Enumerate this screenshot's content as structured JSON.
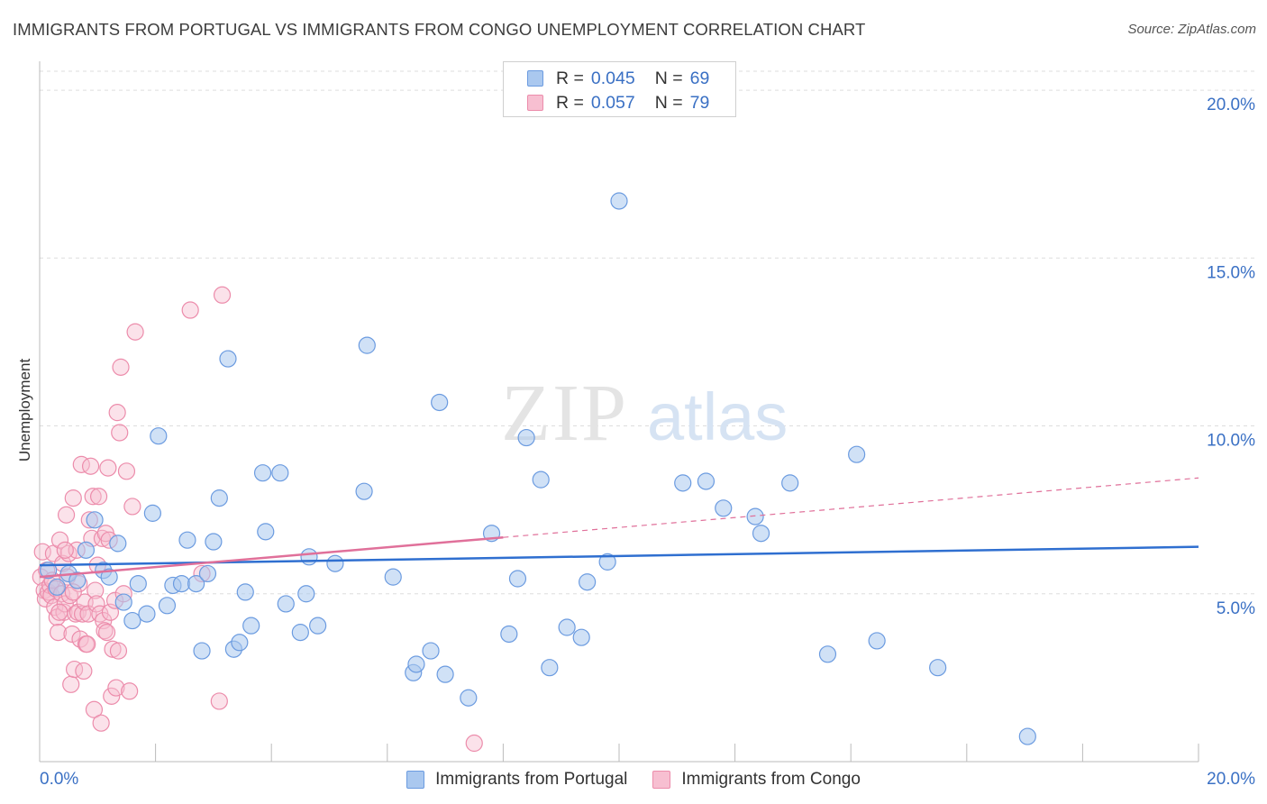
{
  "title": "IMMIGRANTS FROM PORTUGAL VS IMMIGRANTS FROM CONGO UNEMPLOYMENT CORRELATION CHART",
  "source": "Source: ZipAtlas.com",
  "watermark": {
    "zip": "ZIP",
    "atlas": "atlas"
  },
  "legend_top": [
    {
      "r_label": "R =",
      "r_value": "0.045",
      "n_label": "N =",
      "n_value": "69"
    },
    {
      "r_label": "R =",
      "r_value": "0.057",
      "n_label": "N =",
      "n_value": "79"
    }
  ],
  "legend_bottom": [
    {
      "label": "Immigrants from Portugal"
    },
    {
      "label": "Immigrants from Congo"
    }
  ],
  "colors": {
    "blue_fill": "#aac8ef",
    "blue_stroke": "#6b9be0",
    "blue_line": "#2f6fd0",
    "pink_fill": "#f7bfd1",
    "pink_stroke": "#ec8cab",
    "pink_line": "#e0709a",
    "grid": "#dddddd",
    "tick_label": "#3a70c4"
  },
  "chart_data": {
    "type": "scatter",
    "title": "IMMIGRANTS FROM PORTUGAL VS IMMIGRANTS FROM CONGO UNEMPLOYMENT CORRELATION CHART",
    "xlabel": "",
    "ylabel": "Unemployment",
    "xlim": [
      0,
      20
    ],
    "ylim": [
      0,
      20.7
    ],
    "x_tick_labels": [
      "0.0%",
      "20.0%"
    ],
    "y_ticks": [
      5,
      10,
      15,
      20
    ],
    "y_tick_labels": [
      "5.0%",
      "10.0%",
      "15.0%",
      "20.0%"
    ],
    "series": [
      {
        "name": "Immigrants from Portugal",
        "r": 0.045,
        "n": 69,
        "trend": {
          "x": [
            0,
            20
          ],
          "y": [
            5.85,
            6.4
          ],
          "style": "solid"
        },
        "points": [
          [
            0.15,
            5.7
          ],
          [
            0.3,
            5.2
          ],
          [
            0.5,
            5.6
          ],
          [
            0.65,
            5.4
          ],
          [
            0.8,
            6.3
          ],
          [
            0.95,
            7.2
          ],
          [
            1.1,
            5.7
          ],
          [
            1.2,
            5.5
          ],
          [
            1.35,
            6.5
          ],
          [
            1.45,
            4.75
          ],
          [
            1.6,
            4.2
          ],
          [
            1.7,
            5.3
          ],
          [
            1.85,
            4.4
          ],
          [
            1.95,
            7.4
          ],
          [
            2.05,
            9.7
          ],
          [
            2.2,
            4.65
          ],
          [
            2.3,
            5.25
          ],
          [
            2.45,
            5.3
          ],
          [
            2.55,
            6.6
          ],
          [
            2.7,
            5.3
          ],
          [
            2.8,
            3.3
          ],
          [
            2.9,
            5.6
          ],
          [
            3.0,
            6.55
          ],
          [
            3.1,
            7.85
          ],
          [
            3.25,
            12.0
          ],
          [
            3.35,
            3.35
          ],
          [
            3.45,
            3.55
          ],
          [
            3.55,
            5.05
          ],
          [
            3.65,
            4.05
          ],
          [
            3.85,
            8.6
          ],
          [
            3.9,
            6.85
          ],
          [
            4.15,
            8.6
          ],
          [
            4.25,
            4.7
          ],
          [
            4.5,
            3.85
          ],
          [
            4.6,
            5.0
          ],
          [
            4.65,
            6.1
          ],
          [
            4.8,
            4.05
          ],
          [
            5.1,
            5.9
          ],
          [
            5.6,
            8.05
          ],
          [
            5.65,
            12.4
          ],
          [
            6.1,
            5.5
          ],
          [
            6.45,
            2.65
          ],
          [
            6.5,
            2.9
          ],
          [
            6.75,
            3.3
          ],
          [
            6.9,
            10.7
          ],
          [
            7.0,
            2.6
          ],
          [
            7.4,
            1.9
          ],
          [
            7.8,
            6.8
          ],
          [
            8.1,
            3.8
          ],
          [
            8.25,
            5.45
          ],
          [
            8.4,
            9.65
          ],
          [
            8.65,
            8.4
          ],
          [
            8.8,
            2.8
          ],
          [
            9.1,
            4.0
          ],
          [
            9.35,
            3.7
          ],
          [
            9.45,
            5.35
          ],
          [
            9.8,
            5.95
          ],
          [
            10.0,
            16.7
          ],
          [
            11.1,
            8.3
          ],
          [
            11.5,
            8.35
          ],
          [
            11.8,
            7.55
          ],
          [
            12.35,
            7.3
          ],
          [
            12.45,
            6.8
          ],
          [
            12.95,
            8.3
          ],
          [
            13.6,
            3.2
          ],
          [
            14.1,
            9.15
          ],
          [
            14.45,
            3.6
          ],
          [
            15.5,
            2.8
          ],
          [
            17.05,
            0.75
          ]
        ]
      },
      {
        "name": "Immigrants from Congo",
        "r": 0.057,
        "n": 79,
        "trend": {
          "x": [
            0,
            20
          ],
          "y": [
            5.5,
            8.45
          ],
          "solid_to": 8.0
        },
        "points": [
          [
            0.02,
            5.5
          ],
          [
            0.05,
            6.25
          ],
          [
            0.08,
            5.1
          ],
          [
            0.1,
            4.85
          ],
          [
            0.12,
            5.7
          ],
          [
            0.15,
            5.05
          ],
          [
            0.18,
            5.25
          ],
          [
            0.2,
            4.95
          ],
          [
            0.22,
            5.4
          ],
          [
            0.24,
            6.2
          ],
          [
            0.26,
            4.6
          ],
          [
            0.28,
            5.15
          ],
          [
            0.3,
            4.3
          ],
          [
            0.32,
            3.85
          ],
          [
            0.35,
            6.6
          ],
          [
            0.38,
            5.0
          ],
          [
            0.4,
            5.9
          ],
          [
            0.42,
            4.45
          ],
          [
            0.44,
            4.7
          ],
          [
            0.46,
            7.35
          ],
          [
            0.48,
            5.5
          ],
          [
            0.5,
            6.2
          ],
          [
            0.52,
            4.95
          ],
          [
            0.54,
            2.3
          ],
          [
            0.56,
            3.8
          ],
          [
            0.58,
            7.85
          ],
          [
            0.6,
            2.75
          ],
          [
            0.62,
            4.4
          ],
          [
            0.64,
            6.3
          ],
          [
            0.66,
            4.45
          ],
          [
            0.68,
            5.3
          ],
          [
            0.7,
            3.65
          ],
          [
            0.72,
            8.85
          ],
          [
            0.74,
            4.4
          ],
          [
            0.76,
            2.7
          ],
          [
            0.78,
            4.75
          ],
          [
            0.8,
            3.5
          ],
          [
            0.82,
            3.5
          ],
          [
            0.84,
            4.4
          ],
          [
            0.86,
            7.2
          ],
          [
            0.88,
            8.8
          ],
          [
            0.9,
            6.65
          ],
          [
            0.92,
            7.9
          ],
          [
            0.94,
            1.55
          ],
          [
            0.96,
            5.1
          ],
          [
            0.98,
            4.7
          ],
          [
            1.0,
            5.85
          ],
          [
            1.02,
            7.9
          ],
          [
            1.04,
            4.4
          ],
          [
            1.06,
            1.15
          ],
          [
            1.08,
            6.65
          ],
          [
            1.1,
            4.2
          ],
          [
            1.12,
            3.9
          ],
          [
            1.14,
            6.8
          ],
          [
            1.16,
            3.85
          ],
          [
            1.18,
            8.75
          ],
          [
            1.2,
            6.6
          ],
          [
            1.22,
            4.45
          ],
          [
            1.24,
            1.95
          ],
          [
            1.26,
            3.35
          ],
          [
            1.3,
            4.8
          ],
          [
            1.32,
            2.2
          ],
          [
            1.34,
            10.4
          ],
          [
            1.36,
            3.3
          ],
          [
            1.38,
            9.8
          ],
          [
            1.4,
            11.75
          ],
          [
            1.45,
            5.0
          ],
          [
            1.5,
            8.65
          ],
          [
            1.55,
            2.1
          ],
          [
            1.6,
            7.6
          ],
          [
            1.65,
            12.8
          ],
          [
            2.6,
            13.45
          ],
          [
            2.8,
            5.6
          ],
          [
            3.1,
            1.8
          ],
          [
            3.15,
            13.9
          ],
          [
            7.5,
            0.55
          ],
          [
            0.34,
            4.45
          ],
          [
            0.58,
            5.05
          ],
          [
            0.44,
            6.3
          ]
        ]
      }
    ]
  }
}
